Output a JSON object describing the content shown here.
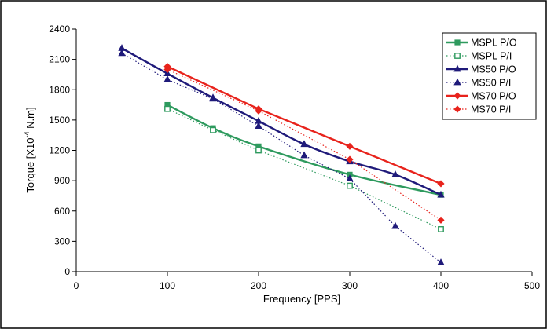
{
  "chart_data": {
    "type": "line",
    "title": "",
    "xlabel": "Frequency  [PPS]",
    "ylabel": {
      "prefix": "Torque  [X10",
      "superscript": "-4",
      "suffix": " N.m]"
    },
    "xlim": [
      0,
      500
    ],
    "ylim": [
      0,
      2400
    ],
    "x_ticks": [
      0,
      100,
      200,
      300,
      400,
      500
    ],
    "y_ticks": [
      0,
      300,
      600,
      900,
      1200,
      1500,
      1800,
      2100,
      2400
    ],
    "grid": false,
    "legend_position": "top-right",
    "series": [
      {
        "name": "MSPL P/O",
        "color": "#2e9a5e",
        "line": "solid",
        "marker": "square",
        "marker_fill": true,
        "smooth": true,
        "points": [
          [
            100,
            1650
          ],
          [
            150,
            1420
          ],
          [
            200,
            1240
          ],
          [
            300,
            960
          ],
          [
            400,
            760
          ]
        ]
      },
      {
        "name": "MSPL P/I",
        "color": "#2e9a5e",
        "line": "dotted",
        "marker": "square",
        "marker_fill": false,
        "smooth": false,
        "points": [
          [
            100,
            1610
          ],
          [
            150,
            1400
          ],
          [
            200,
            1200
          ],
          [
            300,
            850
          ],
          [
            400,
            420
          ]
        ]
      },
      {
        "name": "MS50 P/O",
        "color": "#1f1a7a",
        "line": "solid",
        "marker": "triangle",
        "marker_fill": true,
        "smooth": true,
        "points": [
          [
            50,
            2210
          ],
          [
            100,
            1960
          ],
          [
            150,
            1720
          ],
          [
            200,
            1490
          ],
          [
            250,
            1260
          ],
          [
            300,
            1090
          ],
          [
            350,
            960
          ],
          [
            400,
            760
          ]
        ]
      },
      {
        "name": "MS50 P/I",
        "color": "#1f1a7a",
        "line": "dotted",
        "marker": "triangle",
        "marker_fill": true,
        "smooth": false,
        "points": [
          [
            50,
            2160
          ],
          [
            100,
            1900
          ],
          [
            150,
            1710
          ],
          [
            200,
            1440
          ],
          [
            250,
            1150
          ],
          [
            300,
            920
          ],
          [
            350,
            450
          ],
          [
            400,
            90
          ]
        ]
      },
      {
        "name": "MS70 P/O",
        "color": "#e8231c",
        "line": "solid",
        "marker": "diamond",
        "marker_fill": true,
        "smooth": false,
        "points": [
          [
            100,
            2030
          ],
          [
            200,
            1610
          ],
          [
            300,
            1240
          ],
          [
            400,
            870
          ]
        ]
      },
      {
        "name": "MS70 P/I",
        "color": "#e8231c",
        "line": "dotted",
        "marker": "diamond",
        "marker_fill": true,
        "smooth": false,
        "points": [
          [
            100,
            2000
          ],
          [
            200,
            1590
          ],
          [
            300,
            1110
          ],
          [
            400,
            510
          ]
        ]
      }
    ]
  }
}
